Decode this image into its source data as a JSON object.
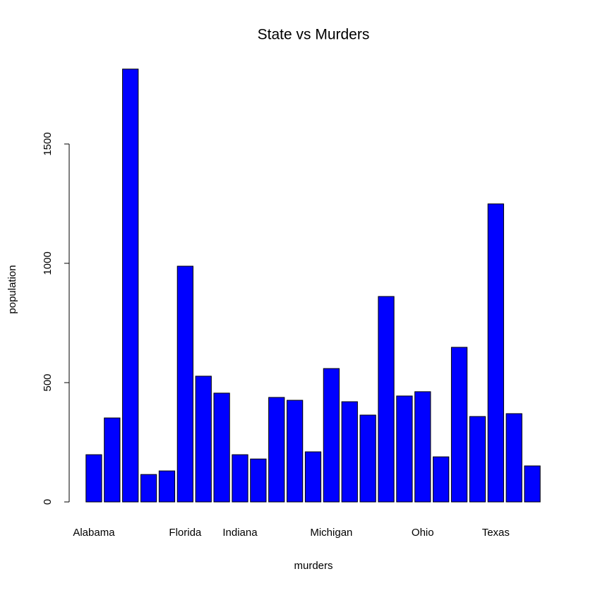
{
  "chart_data": {
    "type": "bar",
    "title": "State vs Murders",
    "x_label": "murders",
    "y_label": "population",
    "categories": [
      "Alabama",
      null,
      null,
      null,
      null,
      "Florida",
      null,
      null,
      "Indiana",
      null,
      null,
      null,
      null,
      "Michigan",
      null,
      null,
      null,
      null,
      "Ohio",
      null,
      null,
      null,
      "Texas",
      null,
      null
    ],
    "values": [
      198,
      352,
      1814,
      115,
      130,
      988,
      527,
      456,
      198,
      180,
      438,
      426,
      210,
      559,
      420,
      364,
      861,
      444,
      462,
      189,
      648,
      358,
      1249,
      370,
      151
    ],
    "color": "#0000ff",
    "ylim": [
      0,
      1886
    ],
    "yticks": [
      0,
      500,
      1000,
      1500
    ],
    "grid": false
  }
}
